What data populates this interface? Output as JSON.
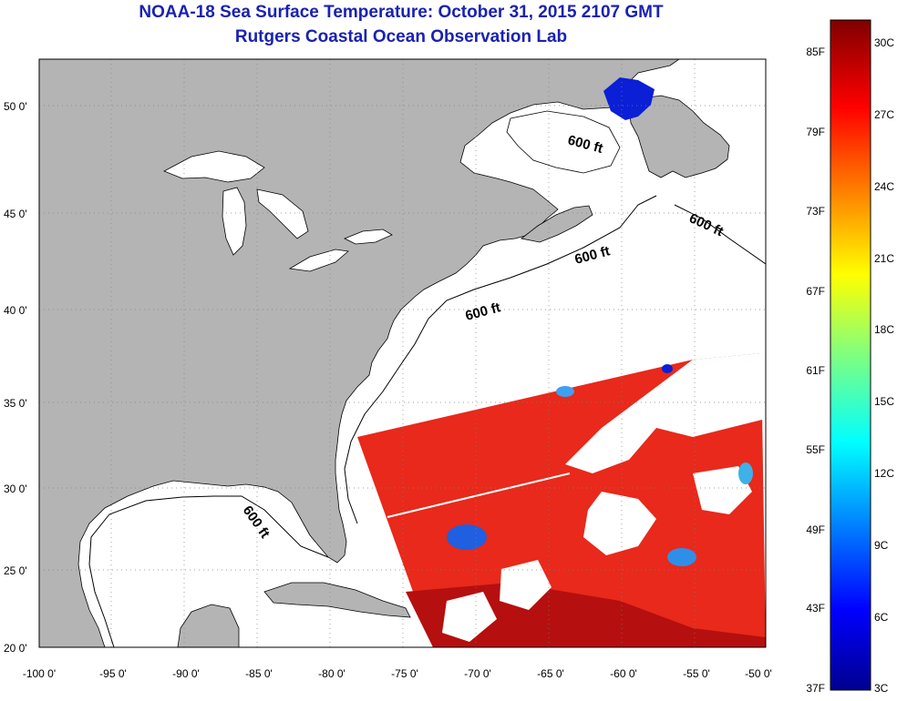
{
  "title": "NOAA-18 Sea Surface Temperature:  October 31, 2015 2107 GMT",
  "subtitle": "Rutgers Coastal Ocean Observation Lab",
  "colors": {
    "title": "#1a22b0",
    "land": "#b4b4b4",
    "cloud": "#ffffff",
    "sst_warm": "#e8291b",
    "sst_hot": "#b50f0f"
  },
  "lat_ticks": [
    "50 0'",
    "45 0'",
    "40 0'",
    "35 0'",
    "30 0'",
    "25 0'",
    "20 0'"
  ],
  "lon_ticks": [
    "-100 0'",
    "-95 0'",
    "-90 0'",
    "-85 0'",
    "-80 0'",
    "-75 0'",
    "-70 0'",
    "-65 0'",
    "-60 0'",
    "-55 0'",
    "-50 0'"
  ],
  "contour_label": "600 ft",
  "colorbar": {
    "f_labels": [
      "85F",
      "79F",
      "73F",
      "67F",
      "61F",
      "55F",
      "49F",
      "43F",
      "37F"
    ],
    "c_labels": [
      "30C",
      "27C",
      "24C",
      "21C",
      "18C",
      "15C",
      "12C",
      "9C",
      "6C",
      "3C"
    ]
  }
}
